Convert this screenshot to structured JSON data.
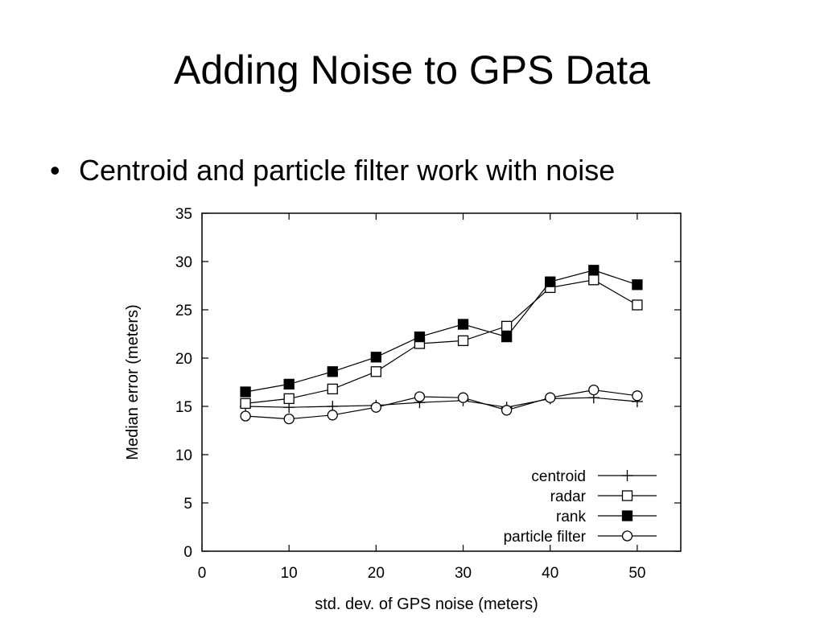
{
  "slide": {
    "title": "Adding Noise to GPS Data",
    "bullet_symbol": "•",
    "bullet_text": "Centroid and particle filter work with noise"
  },
  "chart_data": {
    "type": "line",
    "title": "",
    "xlabel": "std. dev. of GPS noise (meters)",
    "ylabel": "Median error (meters)",
    "xlim": [
      0,
      55
    ],
    "ylim": [
      0,
      35
    ],
    "xticks": [
      0,
      10,
      20,
      30,
      40,
      50
    ],
    "yticks": [
      0,
      5,
      10,
      15,
      20,
      25,
      30,
      35
    ],
    "grid": false,
    "legend_position": "bottom-right",
    "x": [
      5,
      10,
      15,
      20,
      25,
      30,
      35,
      40,
      45,
      50
    ],
    "series": [
      {
        "name": "centroid",
        "marker": "plus",
        "values": [
          15.0,
          14.9,
          15.0,
          15.1,
          15.4,
          15.6,
          14.9,
          15.8,
          15.9,
          15.5
        ]
      },
      {
        "name": "radar",
        "marker": "open-square",
        "values": [
          15.3,
          15.8,
          16.8,
          18.6,
          21.5,
          21.8,
          23.3,
          27.3,
          28.1,
          25.5
        ]
      },
      {
        "name": "rank",
        "marker": "filled-square",
        "values": [
          16.5,
          17.3,
          18.6,
          20.1,
          22.2,
          23.5,
          22.2,
          27.9,
          29.1,
          27.6
        ]
      },
      {
        "name": "particle filter",
        "marker": "open-circle",
        "values": [
          14.0,
          13.7,
          14.1,
          14.9,
          16.0,
          15.9,
          14.6,
          15.9,
          16.7,
          16.1
        ]
      }
    ],
    "colors": {
      "line": "#000000",
      "axis": "#000000",
      "text": "#000000"
    }
  }
}
